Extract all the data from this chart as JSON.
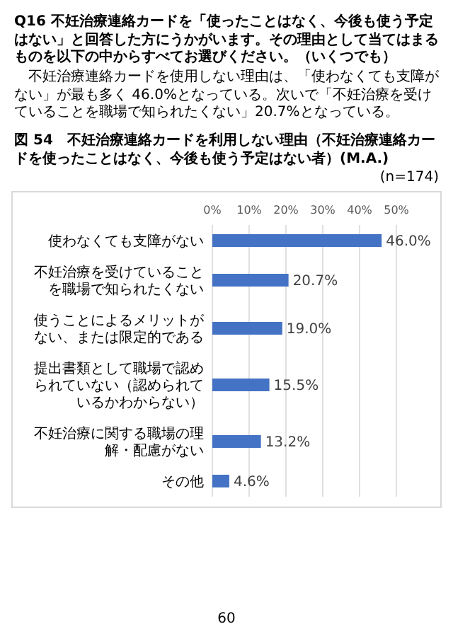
{
  "chart_data": {
    "type": "bar",
    "orientation": "horizontal",
    "title": "図 54　不妊治療連絡カードを利用しない理由（不妊治療連絡カードを使ったことはなく、今後も使う予定はない者）(M.A.)",
    "annotations": [
      "Q16 不妊治療連絡カードを「使ったことはなく、今後も使う予定はない」と回答した方にうかがいます。その理由として当てはまるものを以下の中からすべてお選びください。（いくつでも）",
      "不妊治療連絡カードを使用しない理由は、「使わなくても支障がない」が最も多く 46.0%となっている。次いで「不妊治療を受けていることを職場で知られたくない」20.7%となっている。",
      "(n=174)",
      "60"
    ],
    "categories": [
      "使わなくても支障がない",
      "不妊治療を受けていることを職場で知られたくない",
      "使うことによるメリットがない、または限定的である",
      "提出書類として職場で認められていない（認められているかわからない）",
      "不妊治療に関する職場の理解・配慮がない",
      "その他"
    ],
    "values": [
      46.0,
      20.7,
      19.0,
      15.5,
      13.2,
      4.6
    ],
    "value_labels": [
      "46.0%",
      "20.7%",
      "19.0%",
      "15.5%",
      "13.2%",
      "4.6%"
    ],
    "color": "#4472c4",
    "xlim": [
      0,
      50
    ],
    "xticks": [
      {
        "value": 0,
        "label": "0%"
      },
      {
        "value": 10,
        "label": "10%"
      },
      {
        "value": 20,
        "label": "20%"
      },
      {
        "value": 30,
        "label": "30%"
      },
      {
        "value": 40,
        "label": "40%"
      },
      {
        "value": 50,
        "label": "50%"
      }
    ],
    "grid": "x"
  }
}
